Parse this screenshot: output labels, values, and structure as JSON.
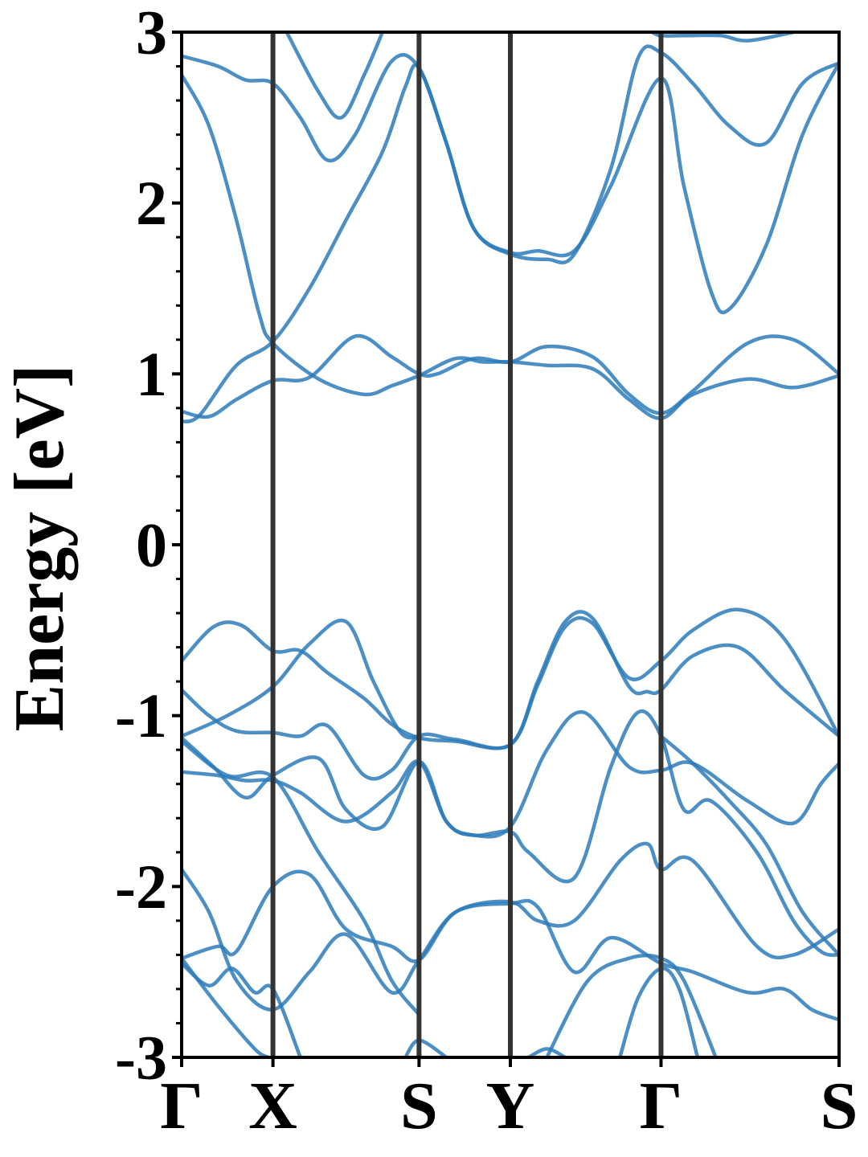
{
  "chart_data": {
    "type": "line",
    "title": "",
    "xlabel": "",
    "ylabel": "Energy [eV]",
    "ylim": [
      -3,
      3
    ],
    "xlim": [
      0,
      7.2
    ],
    "grid": false,
    "legend": "none",
    "series_color": "#2b7bba",
    "hsym_line_color": "#333333",
    "y_ticks": [
      {
        "value": 3,
        "label": "3"
      },
      {
        "value": 2,
        "label": "2"
      },
      {
        "value": 1,
        "label": "1"
      },
      {
        "value": 0,
        "label": "0"
      },
      {
        "value": -1,
        "label": "-1"
      },
      {
        "value": -2,
        "label": "-2"
      },
      {
        "value": -3,
        "label": "-3"
      }
    ],
    "k_points": [
      {
        "x": 0.0,
        "label": "Γ"
      },
      {
        "x": 1.0,
        "label": "X"
      },
      {
        "x": 2.6,
        "label": "S"
      },
      {
        "x": 3.6,
        "label": "Y"
      },
      {
        "x": 5.25,
        "label": "Γ"
      },
      {
        "x": 7.2,
        "label": "S"
      }
    ],
    "series": [
      {
        "values": [
          [
            0,
            2.75
          ],
          [
            0.3,
            2.45
          ],
          [
            0.6,
            1.9
          ],
          [
            0.85,
            1.35
          ],
          [
            1.0,
            1.18
          ],
          [
            1.5,
            0.97
          ],
          [
            2.0,
            0.88
          ],
          [
            2.3,
            0.93
          ],
          [
            2.6,
            0.99
          ],
          [
            3.0,
            1.09
          ],
          [
            3.3,
            1.07
          ],
          [
            3.6,
            1.07
          ],
          [
            4.0,
            1.05
          ],
          [
            4.5,
            1.03
          ],
          [
            4.9,
            0.85
          ],
          [
            5.25,
            0.74
          ],
          [
            5.6,
            0.88
          ],
          [
            6.2,
            0.97
          ],
          [
            6.7,
            0.92
          ],
          [
            7.2,
            0.99
          ]
        ]
      },
      {
        "values": [
          [
            0,
            0.72
          ],
          [
            0.2,
            0.76
          ],
          [
            0.6,
            1.05
          ],
          [
            1.0,
            1.19
          ],
          [
            1.4,
            1.5
          ],
          [
            1.8,
            1.9
          ],
          [
            2.2,
            2.3
          ],
          [
            2.45,
            2.68
          ],
          [
            2.6,
            2.79
          ],
          [
            2.9,
            2.35
          ],
          [
            3.2,
            1.85
          ],
          [
            3.6,
            1.71
          ],
          [
            3.9,
            1.72
          ],
          [
            4.3,
            1.72
          ],
          [
            4.7,
            2.1
          ],
          [
            5.25,
            2.73
          ],
          [
            5.5,
            2.1
          ],
          [
            5.8,
            1.48
          ],
          [
            6.0,
            1.38
          ],
          [
            6.4,
            1.75
          ],
          [
            6.8,
            2.4
          ],
          [
            7.2,
            2.82
          ]
        ]
      },
      {
        "values": [
          [
            0,
            0.78
          ],
          [
            0.3,
            0.75
          ],
          [
            0.6,
            0.85
          ],
          [
            1.0,
            0.96
          ],
          [
            1.4,
            0.98
          ],
          [
            1.9,
            1.22
          ],
          [
            2.3,
            1.1
          ],
          [
            2.6,
            1.0
          ],
          [
            2.8,
            1.0
          ],
          [
            3.2,
            1.09
          ],
          [
            3.6,
            1.07
          ],
          [
            4.0,
            1.16
          ],
          [
            4.5,
            1.1
          ],
          [
            4.9,
            0.88
          ],
          [
            5.25,
            0.77
          ],
          [
            5.6,
            0.9
          ],
          [
            6.2,
            1.18
          ],
          [
            6.7,
            1.2
          ],
          [
            7.2,
            1.0
          ]
        ]
      },
      {
        "values": [
          [
            0,
            2.86
          ],
          [
            0.4,
            2.8
          ],
          [
            0.7,
            2.72
          ],
          [
            1.0,
            2.7
          ],
          [
            1.3,
            2.5
          ],
          [
            1.6,
            2.25
          ],
          [
            1.9,
            2.4
          ],
          [
            2.3,
            2.83
          ],
          [
            2.6,
            2.79
          ],
          [
            2.9,
            2.35
          ],
          [
            3.2,
            1.85
          ],
          [
            3.6,
            1.7
          ],
          [
            4.0,
            1.67
          ],
          [
            4.3,
            1.7
          ],
          [
            4.7,
            2.2
          ],
          [
            5.0,
            2.85
          ],
          [
            5.25,
            2.88
          ],
          [
            5.6,
            2.7
          ],
          [
            6.0,
            2.45
          ],
          [
            6.4,
            2.35
          ],
          [
            6.8,
            2.7
          ],
          [
            7.2,
            2.82
          ]
        ]
      },
      {
        "values": [
          [
            1.15,
            3.0
          ],
          [
            1.5,
            2.65
          ],
          [
            1.75,
            2.5
          ],
          [
            2.0,
            2.75
          ],
          [
            2.2,
            3.0
          ]
        ]
      },
      {
        "values": [
          [
            5.15,
            3.0
          ],
          [
            5.25,
            2.98
          ],
          [
            5.5,
            2.98
          ],
          [
            5.9,
            2.98
          ],
          [
            6.2,
            2.95
          ],
          [
            6.7,
            3.0
          ]
        ]
      },
      {
        "values": [
          [
            0,
            -0.68
          ],
          [
            0.35,
            -0.48
          ],
          [
            0.65,
            -0.47
          ],
          [
            1.0,
            -0.62
          ],
          [
            1.3,
            -0.62
          ],
          [
            1.6,
            -0.75
          ],
          [
            2.0,
            -0.9
          ],
          [
            2.3,
            -1.05
          ],
          [
            2.6,
            -1.13
          ],
          [
            3.0,
            -1.15
          ],
          [
            3.6,
            -1.17
          ],
          [
            3.9,
            -0.82
          ],
          [
            4.2,
            -0.48
          ],
          [
            4.5,
            -0.46
          ],
          [
            4.9,
            -0.78
          ],
          [
            5.25,
            -0.68
          ],
          [
            5.6,
            -0.5
          ],
          [
            6.1,
            -0.38
          ],
          [
            6.6,
            -0.55
          ],
          [
            7.2,
            -1.12
          ]
        ]
      },
      {
        "values": [
          [
            0,
            -0.85
          ],
          [
            0.3,
            -1.0
          ],
          [
            0.6,
            -1.09
          ],
          [
            1.0,
            -1.1
          ],
          [
            1.3,
            -1.12
          ],
          [
            1.6,
            -1.06
          ],
          [
            2.0,
            -1.35
          ],
          [
            2.3,
            -1.32
          ],
          [
            2.6,
            -1.12
          ],
          [
            3.0,
            -1.14
          ],
          [
            3.6,
            -1.17
          ],
          [
            3.9,
            -0.8
          ],
          [
            4.2,
            -0.45
          ],
          [
            4.5,
            -0.43
          ],
          [
            4.9,
            -0.83
          ],
          [
            5.1,
            -0.86
          ],
          [
            5.25,
            -0.85
          ],
          [
            5.6,
            -0.65
          ],
          [
            6.1,
            -0.6
          ],
          [
            6.6,
            -0.85
          ],
          [
            7.2,
            -1.12
          ]
        ]
      },
      {
        "values": [
          [
            0,
            -1.12
          ],
          [
            0.5,
            -1.0
          ],
          [
            1.0,
            -0.83
          ],
          [
            1.4,
            -0.58
          ],
          [
            1.8,
            -0.45
          ],
          [
            2.1,
            -0.8
          ],
          [
            2.4,
            -1.1
          ],
          [
            2.6,
            -1.12
          ]
        ]
      },
      {
        "values": [
          [
            0,
            -1.13
          ],
          [
            0.35,
            -1.3
          ],
          [
            0.7,
            -1.48
          ],
          [
            1.0,
            -1.35
          ],
          [
            1.5,
            -1.25
          ],
          [
            1.8,
            -1.55
          ],
          [
            2.2,
            -1.65
          ],
          [
            2.6,
            -1.27
          ],
          [
            2.9,
            -1.62
          ],
          [
            3.2,
            -1.7
          ],
          [
            3.6,
            -1.68
          ],
          [
            3.8,
            -1.8
          ],
          [
            4.3,
            -1.95
          ],
          [
            4.7,
            -1.3
          ],
          [
            5.0,
            -0.98
          ],
          [
            5.25,
            -1.12
          ],
          [
            5.5,
            -1.55
          ],
          [
            5.8,
            -1.5
          ],
          [
            6.3,
            -1.8
          ],
          [
            6.7,
            -2.2
          ],
          [
            7.0,
            -2.38
          ],
          [
            7.2,
            -2.4
          ]
        ]
      },
      {
        "values": [
          [
            0,
            -1.33
          ],
          [
            0.4,
            -1.35
          ],
          [
            0.7,
            -1.38
          ],
          [
            1.0,
            -1.38
          ],
          [
            1.3,
            -1.45
          ],
          [
            1.8,
            -1.62
          ],
          [
            2.3,
            -1.45
          ],
          [
            2.6,
            -1.27
          ],
          [
            2.9,
            -1.62
          ],
          [
            3.2,
            -1.7
          ],
          [
            3.6,
            -1.65
          ],
          [
            4.0,
            -1.2
          ],
          [
            4.4,
            -0.98
          ],
          [
            4.9,
            -1.3
          ],
          [
            5.25,
            -1.32
          ],
          [
            5.6,
            -1.28
          ],
          [
            6.2,
            -1.5
          ],
          [
            6.7,
            -1.63
          ],
          [
            7.0,
            -1.4
          ],
          [
            7.2,
            -1.28
          ]
        ]
      },
      {
        "values": [
          [
            0,
            -1.15
          ],
          [
            0.5,
            -1.35
          ],
          [
            1.0,
            -1.36
          ],
          [
            1.5,
            -1.8
          ],
          [
            2.0,
            -2.2
          ],
          [
            2.3,
            -2.55
          ],
          [
            2.6,
            -2.75
          ]
        ]
      },
      {
        "values": [
          [
            0,
            -1.9
          ],
          [
            0.3,
            -2.15
          ],
          [
            0.6,
            -2.55
          ],
          [
            1.0,
            -2.72
          ],
          [
            1.4,
            -2.5
          ],
          [
            1.8,
            -2.28
          ],
          [
            2.3,
            -2.62
          ],
          [
            2.6,
            -2.43
          ],
          [
            3.0,
            -2.15
          ],
          [
            3.6,
            -2.09
          ],
          [
            3.9,
            -2.2
          ],
          [
            4.3,
            -2.2
          ],
          [
            4.8,
            -1.85
          ],
          [
            5.1,
            -1.75
          ],
          [
            5.25,
            -1.9
          ],
          [
            5.6,
            -1.85
          ],
          [
            6.3,
            -2.35
          ],
          [
            6.7,
            -2.4
          ],
          [
            7.2,
            -2.25
          ]
        ]
      },
      {
        "values": [
          [
            0,
            -2.42
          ],
          [
            0.4,
            -2.35
          ],
          [
            0.6,
            -2.38
          ],
          [
            1.0,
            -2.0
          ],
          [
            1.4,
            -1.93
          ],
          [
            1.8,
            -2.25
          ],
          [
            2.3,
            -2.35
          ],
          [
            2.6,
            -2.43
          ],
          [
            3.0,
            -2.15
          ],
          [
            3.6,
            -2.1
          ],
          [
            3.9,
            -2.12
          ],
          [
            4.3,
            -2.5
          ],
          [
            4.7,
            -2.3
          ],
          [
            5.25,
            -2.45
          ],
          [
            5.6,
            -2.5
          ],
          [
            6.2,
            -2.62
          ],
          [
            6.6,
            -2.6
          ],
          [
            6.9,
            -2.72
          ],
          [
            7.2,
            -2.78
          ]
        ]
      },
      {
        "values": [
          [
            0,
            -2.45
          ],
          [
            0.3,
            -2.58
          ],
          [
            0.55,
            -2.48
          ],
          [
            0.8,
            -2.62
          ],
          [
            1.0,
            -2.6
          ],
          [
            1.3,
            -3.0
          ]
        ]
      },
      {
        "values": [
          [
            0,
            -2.42
          ],
          [
            0.4,
            -2.7
          ],
          [
            0.8,
            -2.95
          ],
          [
            0.95,
            -3.0
          ]
        ]
      },
      {
        "values": [
          [
            2.45,
            -3.0
          ],
          [
            2.6,
            -2.9
          ],
          [
            2.9,
            -3.0
          ]
        ]
      },
      {
        "values": [
          [
            4.0,
            -3.0
          ],
          [
            4.45,
            -2.55
          ],
          [
            4.9,
            -2.42
          ],
          [
            5.25,
            -2.42
          ],
          [
            5.5,
            -2.55
          ],
          [
            5.85,
            -3.0
          ]
        ]
      },
      {
        "values": [
          [
            4.8,
            -3.0
          ],
          [
            5.0,
            -2.65
          ],
          [
            5.25,
            -2.48
          ],
          [
            5.45,
            -2.6
          ],
          [
            5.65,
            -3.0
          ]
        ]
      },
      {
        "values": [
          [
            3.8,
            -3.0
          ],
          [
            4.0,
            -2.95
          ],
          [
            4.2,
            -3.0
          ]
        ]
      },
      {
        "values": [
          [
            5.25,
            -1.12
          ],
          [
            5.6,
            -1.28
          ],
          [
            6.0,
            -1.5
          ],
          [
            6.4,
            -1.75
          ],
          [
            6.8,
            -2.15
          ],
          [
            7.2,
            -2.4
          ]
        ]
      }
    ]
  }
}
